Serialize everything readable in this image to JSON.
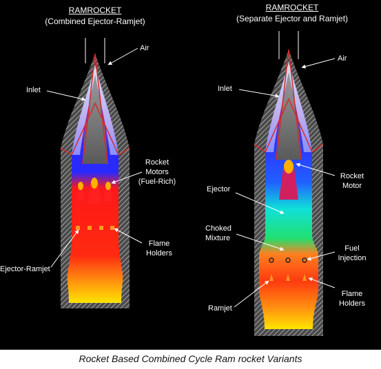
{
  "left_diagram": {
    "title": "RAMROCKET",
    "subtitle": "(Combined Ejector-Ramjet)",
    "labels": {
      "air": "Air",
      "inlet": "Inlet",
      "rocket_motors": "Rocket Motors (Fuel-Rich)",
      "rocket_motors_line1": "Rocket",
      "rocket_motors_line2": "Motors",
      "rocket_motors_line3": "(Fuel-Rich)",
      "flame_holders_line1": "Flame",
      "flame_holders_line2": "Holders",
      "ejector_ramjet": "Ejector-Ramjet"
    }
  },
  "right_diagram": {
    "title": "RAMROCKET",
    "subtitle": "(Separate Ejector and Ramjet)",
    "labels": {
      "air": "Air",
      "inlet": "Inlet",
      "rocket_motor_line1": "Rocket",
      "rocket_motor_line2": "Motor",
      "ejector": "Ejector",
      "choked_line1": "Choked",
      "choked_line2": "Mixture",
      "fuel_line1": "Fuel",
      "fuel_line2": "Injection",
      "flame_holders_line1": "Flame",
      "flame_holders_line2": "Holders",
      "ramjet": "Ramjet"
    }
  },
  "caption": "Rocket Based Combined Cycle Ram rocket Variants",
  "colors": {
    "background": "#000000",
    "inlet_outline": "#d42a2a",
    "ejector_blue": "#2323e0",
    "choked_cyan": "#10e0d0",
    "flame_red": "#ff1010",
    "exhaust_yellow": "#ffe000"
  }
}
